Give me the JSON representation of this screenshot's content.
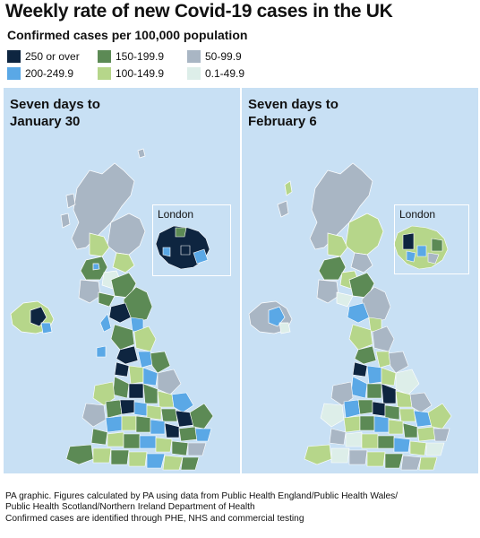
{
  "title": "Weekly rate of new Covid-19 cases in the UK",
  "subtitle": "Confirmed cases per 100,000 population",
  "legend": [
    {
      "label": "250 or over",
      "color": "#0e2540"
    },
    {
      "label": "200-249.9",
      "color": "#5aa8e6"
    },
    {
      "label": "150-199.9",
      "color": "#5c8a55"
    },
    {
      "label": "100-149.9",
      "color": "#b6d68a"
    },
    {
      "label": "50-99.9",
      "color": "#a9b6c4"
    },
    {
      "label": "0.1-49.9",
      "color": "#ddeee9"
    }
  ],
  "maps": [
    {
      "title_line1": "Seven days to",
      "title_line2": "January 30",
      "inset_label": "London"
    },
    {
      "title_line1": "Seven days to",
      "title_line2": "February 6",
      "inset_label": "London"
    }
  ],
  "footer": {
    "line1": "PA graphic. Figures calculated by PA using data from Public Health England/Public Health Wales/",
    "line2": "Public Health Scotland/Northern Ireland Department of Health",
    "line3": "Confirmed cases are identified through PHE, NHS and commercial testing"
  }
}
